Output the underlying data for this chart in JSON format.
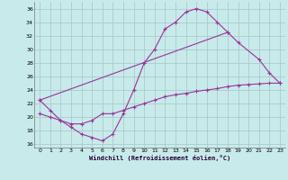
{
  "bg_color": "#c8eaea",
  "grid_color": "#a8cccc",
  "line_color": "#993399",
  "xlim": [
    -0.5,
    23.5
  ],
  "ylim": [
    15.5,
    37.0
  ],
  "xticks": [
    0,
    1,
    2,
    3,
    4,
    5,
    6,
    7,
    8,
    9,
    10,
    11,
    12,
    13,
    14,
    15,
    16,
    17,
    18,
    19,
    20,
    21,
    22,
    23
  ],
  "yticks": [
    16,
    18,
    20,
    22,
    24,
    26,
    28,
    30,
    32,
    34,
    36
  ],
  "xlabel": "Windchill (Refroidissement éolien,°C)",
  "line1_x": [
    0,
    1,
    2,
    3,
    4,
    5,
    6,
    7,
    8,
    9,
    10,
    11,
    12,
    13,
    14,
    15,
    16,
    17,
    18
  ],
  "line1_y": [
    22.5,
    21.0,
    19.5,
    18.5,
    17.5,
    17.0,
    16.5,
    17.5,
    20.5,
    24.0,
    28.0,
    30.0,
    33.0,
    34.0,
    35.5,
    36.0,
    35.5,
    34.0,
    32.5
  ],
  "line2_x": [
    0,
    18,
    19,
    21,
    22,
    23
  ],
  "line2_y": [
    22.5,
    32.5,
    31.0,
    28.5,
    26.5,
    25.0
  ],
  "line3_x": [
    0,
    1,
    2,
    3,
    4,
    5,
    6,
    7,
    8,
    9,
    10,
    11,
    12,
    13,
    14,
    15,
    16,
    17,
    18,
    19,
    20,
    21,
    22,
    23
  ],
  "line3_y": [
    20.5,
    20.0,
    19.5,
    19.0,
    19.0,
    19.5,
    20.5,
    20.5,
    21.0,
    21.5,
    22.0,
    22.5,
    23.0,
    23.3,
    23.5,
    23.8,
    24.0,
    24.2,
    24.5,
    24.7,
    24.8,
    24.9,
    25.0,
    25.0
  ]
}
